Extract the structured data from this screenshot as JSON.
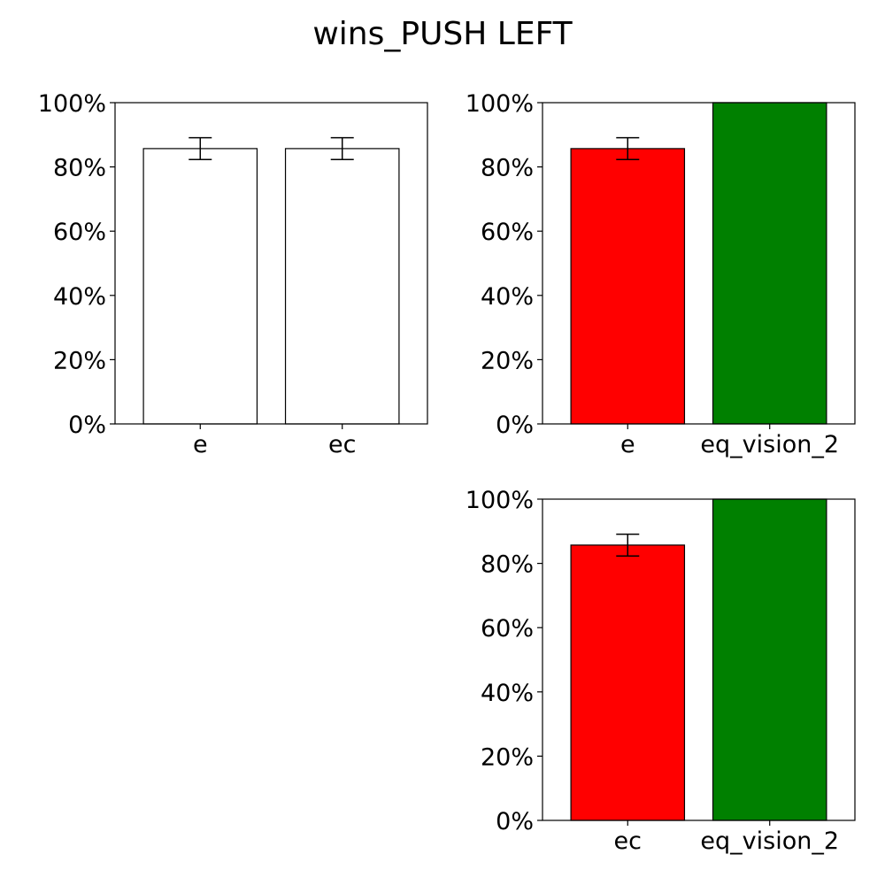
{
  "title": "wins_PUSH LEFT",
  "chart_data": [
    {
      "type": "bar",
      "position": "top-left",
      "categories": [
        "e",
        "ec"
      ],
      "values": [
        85.7,
        85.7
      ],
      "errors": [
        3.4,
        3.4
      ],
      "colors": [
        "#ffffff",
        "#ffffff"
      ],
      "ylim": [
        0,
        100
      ],
      "yticks": [
        "0%",
        "20%",
        "40%",
        "60%",
        "80%",
        "100%"
      ],
      "xlabel": "",
      "ylabel": "",
      "grid": false
    },
    {
      "type": "bar",
      "position": "top-right",
      "categories": [
        "e",
        "eq_vision_2"
      ],
      "values": [
        85.7,
        100
      ],
      "errors": [
        3.4,
        0
      ],
      "colors": [
        "#ff0000",
        "#008000"
      ],
      "ylim": [
        0,
        100
      ],
      "yticks": [
        "0%",
        "20%",
        "40%",
        "60%",
        "80%",
        "100%"
      ],
      "xlabel": "",
      "ylabel": "",
      "grid": false
    },
    {
      "type": "bar",
      "position": "bottom-right",
      "categories": [
        "ec",
        "eq_vision_2"
      ],
      "values": [
        85.7,
        100
      ],
      "errors": [
        3.4,
        0
      ],
      "colors": [
        "#ff0000",
        "#008000"
      ],
      "ylim": [
        0,
        100
      ],
      "yticks": [
        "0%",
        "20%",
        "40%",
        "60%",
        "80%",
        "100%"
      ],
      "xlabel": "",
      "ylabel": "",
      "grid": false
    }
  ]
}
